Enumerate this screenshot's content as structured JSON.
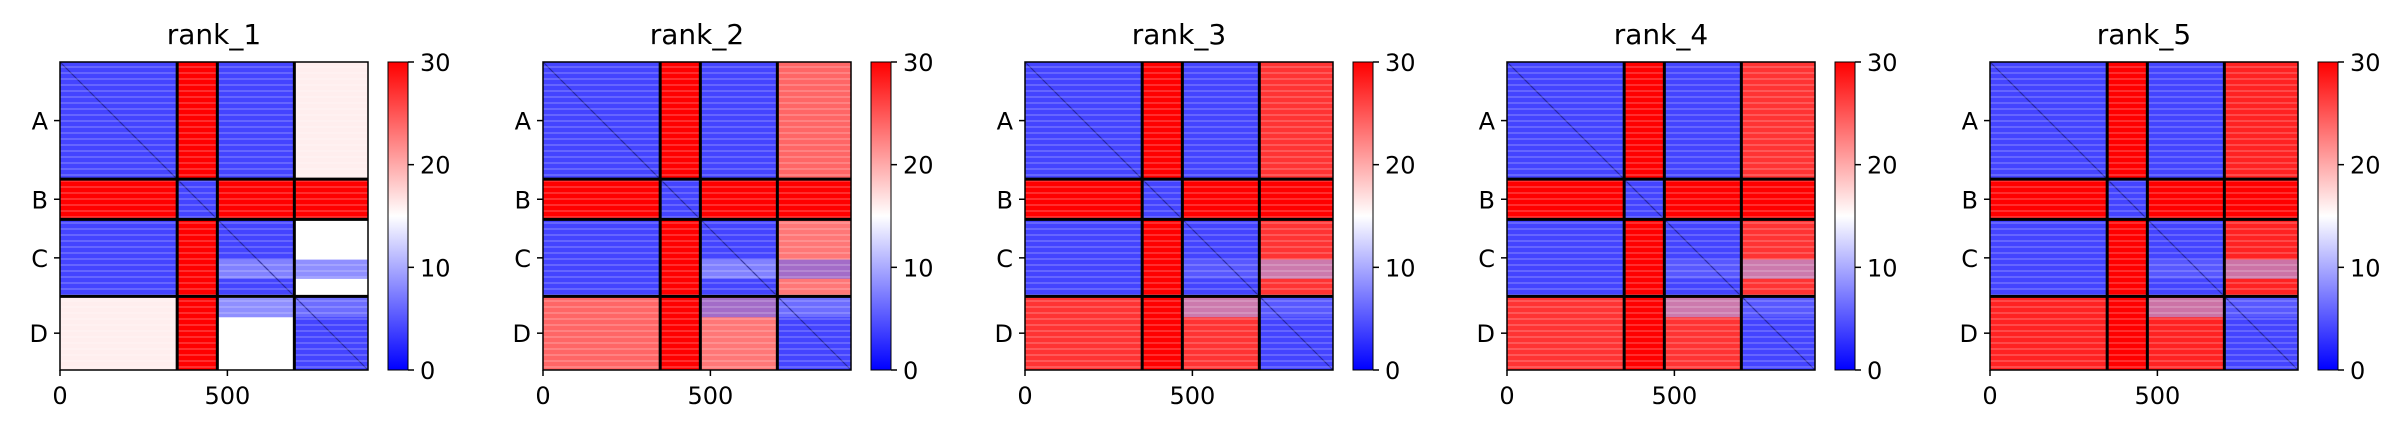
{
  "chart_data": {
    "type": "heatmap",
    "colormap": {
      "low": "#0000ff",
      "mid": "#ffffff",
      "high": "#ff0000",
      "vmin": 0,
      "vmax": 30
    },
    "colorbar_ticks": [
      "0",
      "10",
      "20",
      "30"
    ],
    "x_tick_labels": [
      "0",
      "500"
    ],
    "x_ticks": [
      0,
      500
    ],
    "x_range": [
      0,
      920
    ],
    "chain_labels": [
      "A",
      "B",
      "C",
      "D"
    ],
    "chain_boundaries": [
      0,
      350,
      470,
      700,
      920
    ],
    "panels": [
      {
        "title": "rank_1",
        "block_values": [
          [
            4,
            30,
            4,
            16
          ],
          [
            30,
            4,
            30,
            30
          ],
          [
            4,
            30,
            4,
            15
          ],
          [
            16,
            30,
            15,
            4
          ],
          [
            22,
            30,
            10,
            4
          ],
          [
            21,
            30,
            4,
            8
          ]
        ]
      },
      {
        "title": "rank_2",
        "block_values": [
          [
            4,
            30,
            4,
            24
          ],
          [
            30,
            4,
            30,
            30
          ],
          [
            4,
            30,
            4,
            23
          ],
          [
            24,
            30,
            23,
            4
          ],
          [
            24,
            30,
            10,
            6
          ],
          [
            24,
            30,
            6,
            8
          ]
        ]
      },
      {
        "title": "rank_3",
        "block_values": [
          [
            4,
            30,
            4,
            27
          ],
          [
            30,
            4,
            30,
            30
          ],
          [
            4,
            30,
            4,
            27
          ],
          [
            27,
            30,
            27,
            4
          ],
          [
            27,
            30,
            6,
            10
          ],
          [
            27,
            30,
            10,
            6
          ]
        ]
      },
      {
        "title": "rank_4",
        "block_values": [
          [
            4,
            30,
            4,
            27
          ],
          [
            30,
            4,
            30,
            30
          ],
          [
            4,
            30,
            4,
            27
          ],
          [
            27,
            30,
            27,
            4
          ],
          [
            27,
            30,
            6,
            10
          ],
          [
            27,
            30,
            10,
            6
          ]
        ]
      },
      {
        "title": "rank_5",
        "block_values": [
          [
            4,
            30,
            4,
            28
          ],
          [
            30,
            4,
            30,
            30
          ],
          [
            4,
            30,
            4,
            28
          ],
          [
            28,
            30,
            28,
            4
          ],
          [
            28,
            30,
            6,
            10
          ],
          [
            28,
            30,
            10,
            6
          ]
        ]
      }
    ]
  }
}
